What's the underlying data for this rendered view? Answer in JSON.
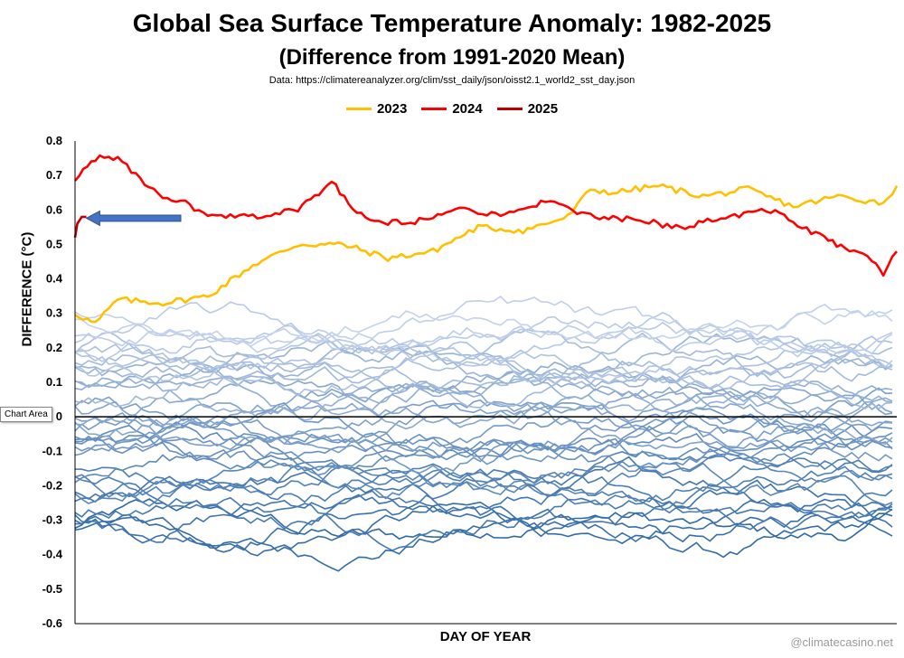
{
  "chart_data": {
    "type": "line",
    "title": "Global Sea Surface Temperature Anomaly: 1982-2025",
    "subtitle": "(Difference from 1991-2020 Mean)",
    "source": "Data: https://climatereanalyzer.org/clim/sst_daily/json/oisst2.1_world2_sst_day.json",
    "xlabel": "DAY OF YEAR",
    "ylabel": "DIFFERENCE (°C)",
    "ylim": [
      -0.6,
      0.8
    ],
    "yticks": [
      "0.8",
      "0.7",
      "0.6",
      "0.5",
      "0.4",
      "0.3",
      "0.2",
      "0.1",
      "0",
      "-0.1",
      "-0.2",
      "-0.3",
      "-0.4",
      "-0.5",
      "-0.6"
    ],
    "xlim": [
      1,
      366
    ],
    "legend": [
      {
        "name": "2023",
        "color": "#FFC000"
      },
      {
        "name": "2024",
        "color": "#FF0000"
      },
      {
        "name": "2025",
        "color": "#C00000"
      }
    ],
    "highlight_series": [
      {
        "name": "2023",
        "color": "#FFC000",
        "x": [
          1,
          10,
          20,
          40,
          60,
          80,
          100,
          120,
          140,
          160,
          180,
          200,
          220,
          230,
          240,
          260,
          280,
          300,
          320,
          340,
          360,
          366
        ],
        "y": [
          0.3,
          0.27,
          0.34,
          0.33,
          0.35,
          0.44,
          0.5,
          0.5,
          0.46,
          0.48,
          0.55,
          0.54,
          0.58,
          0.66,
          0.65,
          0.67,
          0.64,
          0.66,
          0.61,
          0.64,
          0.62,
          0.67
        ]
      },
      {
        "name": "2024",
        "color": "#FF0000",
        "x": [
          1,
          10,
          20,
          40,
          50,
          60,
          80,
          100,
          115,
          130,
          150,
          170,
          190,
          200,
          210,
          230,
          250,
          270,
          290,
          310,
          330,
          345,
          355,
          360,
          366
        ],
        "y": [
          0.69,
          0.75,
          0.75,
          0.63,
          0.62,
          0.58,
          0.58,
          0.6,
          0.68,
          0.57,
          0.56,
          0.61,
          0.58,
          0.6,
          0.63,
          0.58,
          0.57,
          0.55,
          0.58,
          0.6,
          0.53,
          0.48,
          0.46,
          0.41,
          0.48
        ]
      },
      {
        "name": "2025",
        "color": "#C00000",
        "x": [
          1,
          2,
          3,
          4,
          5,
          6
        ],
        "y": [
          0.52,
          0.56,
          0.57,
          0.58,
          0.58,
          0.58
        ]
      }
    ],
    "background_series_count": 41,
    "background_series_note": "Years 1982-2022, blue shades (darker = earlier)",
    "annotation": "arrow pointing to 2025 line"
  },
  "tooltip": "Chart Area",
  "watermark": "@climatecasino.net"
}
